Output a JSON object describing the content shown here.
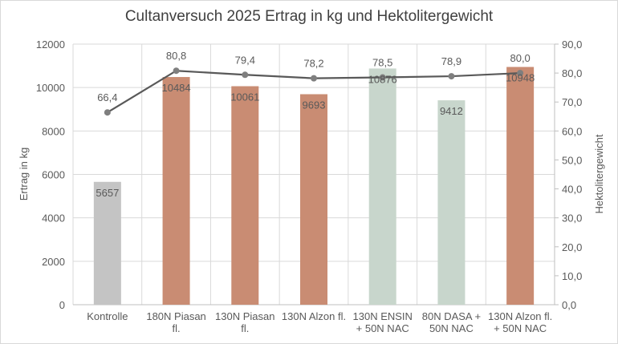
{
  "chart_data": {
    "type": "bar+line",
    "title": "Cultanversuch 2025 Ertrag in kg und Hektolitergewicht",
    "categories": [
      [
        "Kontrolle"
      ],
      [
        "180N Piasan",
        "fl."
      ],
      [
        "130N Piasan",
        "fl."
      ],
      [
        "130N Alzon fl."
      ],
      [
        "130N ENSIN",
        "+ 50N NAC"
      ],
      [
        "80N DASA +",
        "50N NAC"
      ],
      [
        "130N Alzon fl.",
        "+ 50N NAC"
      ]
    ],
    "series": [
      {
        "name": "Ertrag in kg",
        "type": "bar",
        "axis": "left",
        "values": [
          5657,
          10484,
          10061,
          9693,
          10876,
          9412,
          10948
        ],
        "labels": [
          "5657",
          "10484",
          "10061",
          "9693",
          "10876",
          "9412",
          "10948"
        ],
        "colors": [
          "#c4c4c4",
          "#c98c73",
          "#c98c73",
          "#c98c73",
          "#c8d6cc",
          "#c8d6cc",
          "#c98c73"
        ]
      },
      {
        "name": "Hektolitergewicht",
        "type": "line",
        "axis": "right",
        "values": [
          66.4,
          80.8,
          79.4,
          78.2,
          78.5,
          78.9,
          80.0
        ],
        "labels": [
          "66,4",
          "80,8",
          "79,4",
          "78,2",
          "78,5",
          "78,9",
          "80,0"
        ],
        "color": "#595959"
      }
    ],
    "ylabel": "Ertrag in kg",
    "ylim": [
      0,
      12000
    ],
    "yticks": [
      "0",
      "2000",
      "4000",
      "6000",
      "8000",
      "10000",
      "12000"
    ],
    "y2label": "Hektolitergewicht",
    "y2lim": [
      0,
      90
    ],
    "y2ticks": [
      "0,0",
      "10,0",
      "20,0",
      "30,0",
      "40,0",
      "50,0",
      "60,0",
      "70,0",
      "80,0",
      "90,0"
    ],
    "grid": true,
    "legend": "none"
  }
}
